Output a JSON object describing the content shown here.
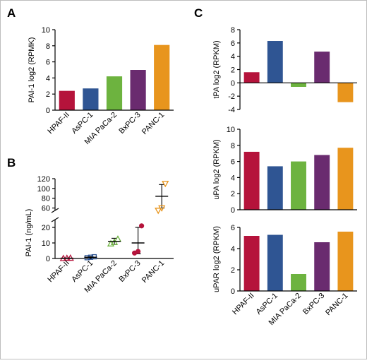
{
  "panels": {
    "a": "A",
    "b": "B",
    "c": "C"
  },
  "chart_data": [
    {
      "id": "A",
      "type": "bar",
      "ylabel": "PAI-1 log2 (RPMK)",
      "categories": [
        "HPAF-II",
        "AsPC-1",
        "MIA PaCa-2",
        "BxPC-3",
        "PANC-1"
      ],
      "values": [
        2.4,
        2.7,
        4.2,
        5.0,
        8.1
      ],
      "colors": [
        "#b5133b",
        "#2f5593",
        "#6db33f",
        "#6a2b6f",
        "#e8951d"
      ],
      "ylim": [
        0,
        10
      ],
      "yticks": [
        0,
        2,
        4,
        6,
        8,
        10
      ],
      "grid": false
    },
    {
      "id": "B",
      "type": "scatter",
      "ylabel": "PAI-1 (ng/mL)",
      "categories": [
        "HPAF-II",
        "AsPC-1",
        "MIA PaCa-2",
        "BxPC-3",
        "PANC-1"
      ],
      "colors": [
        "#b5133b",
        "#2f5593",
        "#6db33f",
        "#b5133b",
        "#e8951d"
      ],
      "markers": [
        "triangle",
        "square",
        "triangle",
        "circle",
        "triangle-down"
      ],
      "points": [
        [
          0.1,
          0.2,
          0.3
        ],
        [
          0.5,
          0.8,
          1.1
        ],
        [
          9.5,
          10.5,
          12.5
        ],
        [
          3.5,
          4.5,
          21
        ],
        [
          55,
          60,
          110
        ]
      ],
      "mean": [
        0.2,
        0.8,
        11,
        10,
        84
      ],
      "sd_low": [
        0.05,
        0.4,
        9,
        3,
        60
      ],
      "sd_high": [
        0.3,
        1.2,
        13,
        20,
        108
      ],
      "axis_break": [
        25,
        55
      ],
      "yticks_lower": [
        0,
        10,
        20
      ],
      "yticks_upper": [
        60,
        80,
        100,
        120
      ],
      "grid": false
    },
    {
      "id": "C1",
      "type": "bar",
      "ylabel": "tPA log2 (RPKM)",
      "categories": [
        "HPAF-II",
        "AsPC-1",
        "MIA PaCa-2",
        "BxPC-3",
        "PANC-1"
      ],
      "values": [
        1.6,
        6.3,
        -0.6,
        4.7,
        -2.9
      ],
      "colors": [
        "#b5133b",
        "#2f5593",
        "#6db33f",
        "#6a2b6f",
        "#e8951d"
      ],
      "ylim": [
        -4,
        8
      ],
      "yticks": [
        -4,
        -2,
        0,
        2,
        4,
        6,
        8
      ],
      "grid": false
    },
    {
      "id": "C2",
      "type": "bar",
      "ylabel": "uPA log2 (RPKM)",
      "categories": [
        "HPAF-II",
        "AsPC-1",
        "MIA PaCa-2",
        "BxPC-3",
        "PANC-1"
      ],
      "values": [
        7.2,
        5.4,
        6.0,
        6.8,
        7.7
      ],
      "colors": [
        "#b5133b",
        "#2f5593",
        "#6db33f",
        "#6a2b6f",
        "#e8951d"
      ],
      "ylim": [
        0,
        10
      ],
      "yticks": [
        0,
        2,
        4,
        6,
        8,
        10
      ],
      "grid": false
    },
    {
      "id": "C3",
      "type": "bar",
      "ylabel": "uPAR log2 (RPKM)",
      "categories": [
        "HPAF-II",
        "AsPC-1",
        "MIA PaCa-2",
        "BxPC-3",
        "PANC-1"
      ],
      "values": [
        5.2,
        5.3,
        1.6,
        4.6,
        5.6
      ],
      "colors": [
        "#b5133b",
        "#2f5593",
        "#6db33f",
        "#6a2b6f",
        "#e8951d"
      ],
      "ylim": [
        0,
        6
      ],
      "yticks": [
        0,
        2,
        4,
        6
      ],
      "grid": false
    }
  ]
}
